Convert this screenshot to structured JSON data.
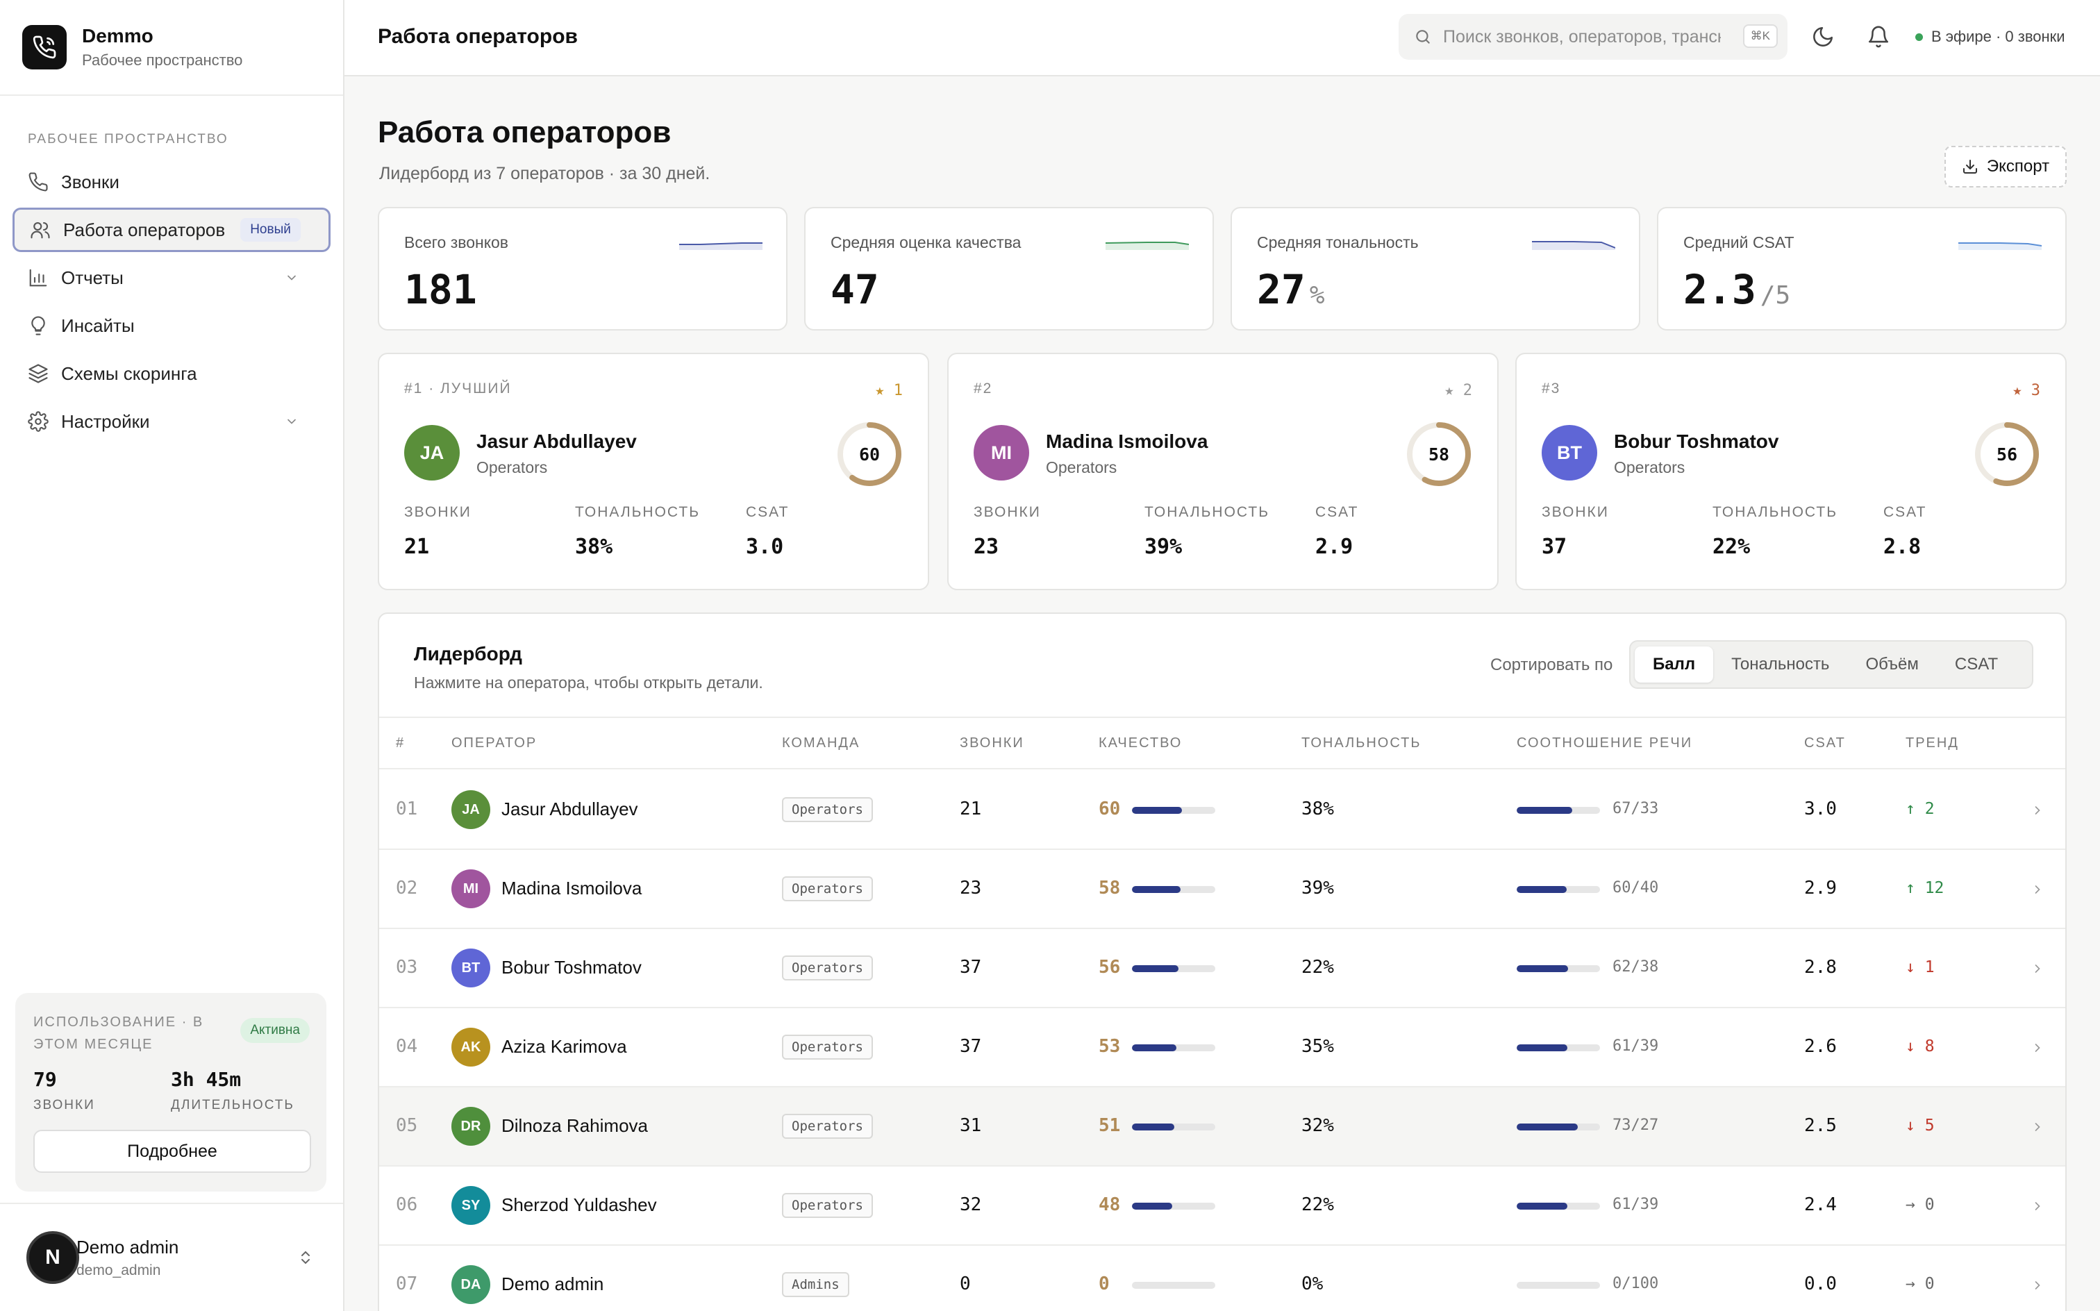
{
  "brand": {
    "name": "Demmo",
    "sub": "Рабочее пространство"
  },
  "sidebar": {
    "section": "РАБОЧЕЕ ПРОСТРАНСТВО",
    "items": [
      {
        "label": "Звонки",
        "icon": "phone-icon"
      },
      {
        "label": "Работа операторов",
        "icon": "users-icon",
        "badge": "Новый",
        "active": true
      },
      {
        "label": "Отчеты",
        "icon": "bar-chart-icon",
        "expandable": true
      },
      {
        "label": "Инсайты",
        "icon": "lightbulb-icon"
      },
      {
        "label": "Схемы скоринга",
        "icon": "layers-icon"
      },
      {
        "label": "Настройки",
        "icon": "gear-icon",
        "expandable": true
      }
    ],
    "usage": {
      "title": "ИСПОЛЬЗОВАНИЕ · В ЭТОМ МЕСЯЦЕ",
      "badge": "Активна",
      "calls_value": "79",
      "calls_label": "ЗВОНКИ",
      "duration_value": "3h 45m",
      "duration_label": "ДЛИТЕЛЬНОСТЬ",
      "button": "Подробнее"
    },
    "user": {
      "initial": "N",
      "name": "Demo admin",
      "login": "demo_admin"
    }
  },
  "topbar": {
    "title": "Работа операторов",
    "search_placeholder": "Поиск звонков, операторов, транскриптов",
    "shortcut": "⌘K",
    "status": "В эфире · 0 звонки"
  },
  "page": {
    "title": "Работа операторов",
    "subtitle": "Лидерборд из 7 операторов · за 30 дней.",
    "export": "Экспорт"
  },
  "kpis": [
    {
      "label": "Всего звонков",
      "value": "181",
      "unit": "",
      "color": "#4a5aa8"
    },
    {
      "label": "Средняя оценка качества",
      "value": "47",
      "unit": "",
      "color": "#3f9a5c"
    },
    {
      "label": "Средняя тональность",
      "value": "27",
      "unit": "%",
      "color": "#4a5aa8"
    },
    {
      "label": "Средний CSAT",
      "value": "2.3",
      "unit": "/5",
      "color": "#5b8fd6"
    }
  ],
  "top3": [
    {
      "rank": "#1 · ЛУЧШИЙ",
      "star": "★ 1",
      "star_color": "#c9962e",
      "initials": "JA",
      "color": "#5a8f3a",
      "name": "Jasur Abdullayev",
      "team": "Operators",
      "score": 60,
      "calls_label": "ЗВОНКИ",
      "calls": "21",
      "tone_label": "ТОНАЛЬНОСТЬ",
      "tone": "38%",
      "csat_label": "CSAT",
      "csat": "3.0"
    },
    {
      "rank": "#2",
      "star": "★ 2",
      "star_color": "#999999",
      "initials": "MI",
      "color": "#a0559e",
      "name": "Madina Ismoilova",
      "team": "Operators",
      "score": 58,
      "calls_label": "ЗВОНКИ",
      "calls": "23",
      "tone_label": "ТОНАЛЬНОСТЬ",
      "tone": "39%",
      "csat_label": "CSAT",
      "csat": "2.9"
    },
    {
      "rank": "#3",
      "star": "★ 3",
      "star_color": "#c0623a",
      "initials": "BT",
      "color": "#5f66d6",
      "name": "Bobur Toshmatov",
      "team": "Operators",
      "score": 56,
      "calls_label": "ЗВОНКИ",
      "calls": "37",
      "tone_label": "ТОНАЛЬНОСТЬ",
      "tone": "22%",
      "csat_label": "CSAT",
      "csat": "2.8"
    }
  ],
  "leaderboard": {
    "title": "Лидерборд",
    "subtitle": "Нажмите на оператора, чтобы открыть детали.",
    "sort_label": "Сортировать по",
    "sort_options": [
      "Балл",
      "Тональность",
      "Объём",
      "CSAT"
    ],
    "sort_selected": "Балл",
    "columns": [
      "#",
      "ОПЕРАТОР",
      "КОМАНДА",
      "ЗВОНКИ",
      "КАЧЕСТВО",
      "ТОНАЛЬНОСТЬ",
      "СООТНОШЕНИЕ РЕЧИ",
      "CSAT",
      "ТРЕНД"
    ],
    "rows": [
      {
        "num": "01",
        "initials": "JA",
        "color": "#5a8f3a",
        "name": "Jasur Abdullayev",
        "team": "Operators",
        "calls": "21",
        "quality": 60,
        "tone": "38%",
        "ratio": 67,
        "ratio_text": "67/33",
        "csat": "3.0",
        "trend_dir": "up",
        "trend": "↑ 2"
      },
      {
        "num": "02",
        "initials": "MI",
        "color": "#a0559e",
        "name": "Madina Ismoilova",
        "team": "Operators",
        "calls": "23",
        "quality": 58,
        "tone": "39%",
        "ratio": 60,
        "ratio_text": "60/40",
        "csat": "2.9",
        "trend_dir": "up",
        "trend": "↑ 12"
      },
      {
        "num": "03",
        "initials": "BT",
        "color": "#5f66d6",
        "name": "Bobur Toshmatov",
        "team": "Operators",
        "calls": "37",
        "quality": 56,
        "tone": "22%",
        "ratio": 62,
        "ratio_text": "62/38",
        "csat": "2.8",
        "trend_dir": "down",
        "trend": "↓ 1"
      },
      {
        "num": "04",
        "initials": "AK",
        "color": "#b8921f",
        "name": "Aziza Karimova",
        "team": "Operators",
        "calls": "37",
        "quality": 53,
        "tone": "35%",
        "ratio": 61,
        "ratio_text": "61/39",
        "csat": "2.6",
        "trend_dir": "down",
        "trend": "↓ 8"
      },
      {
        "num": "05",
        "initials": "DR",
        "color": "#4f8f3c",
        "name": "Dilnoza Rahimova",
        "team": "Operators",
        "calls": "31",
        "quality": 51,
        "tone": "32%",
        "ratio": 73,
        "ratio_text": "73/27",
        "csat": "2.5",
        "trend_dir": "down",
        "trend": "↓ 5",
        "highlight": true
      },
      {
        "num": "06",
        "initials": "SY",
        "color": "#138c9a",
        "name": "Sherzod Yuldashev",
        "team": "Operators",
        "calls": "32",
        "quality": 48,
        "tone": "22%",
        "ratio": 61,
        "ratio_text": "61/39",
        "csat": "2.4",
        "trend_dir": "flat",
        "trend": "→ 0"
      },
      {
        "num": "07",
        "initials": "DA",
        "color": "#3e9a6a",
        "name": "Demo admin",
        "team": "Admins",
        "calls": "0",
        "quality": 0,
        "tone": "0%",
        "ratio": 0,
        "ratio_text": "0/100",
        "csat": "0.0",
        "trend_dir": "flat",
        "trend": "→ 0"
      }
    ]
  }
}
